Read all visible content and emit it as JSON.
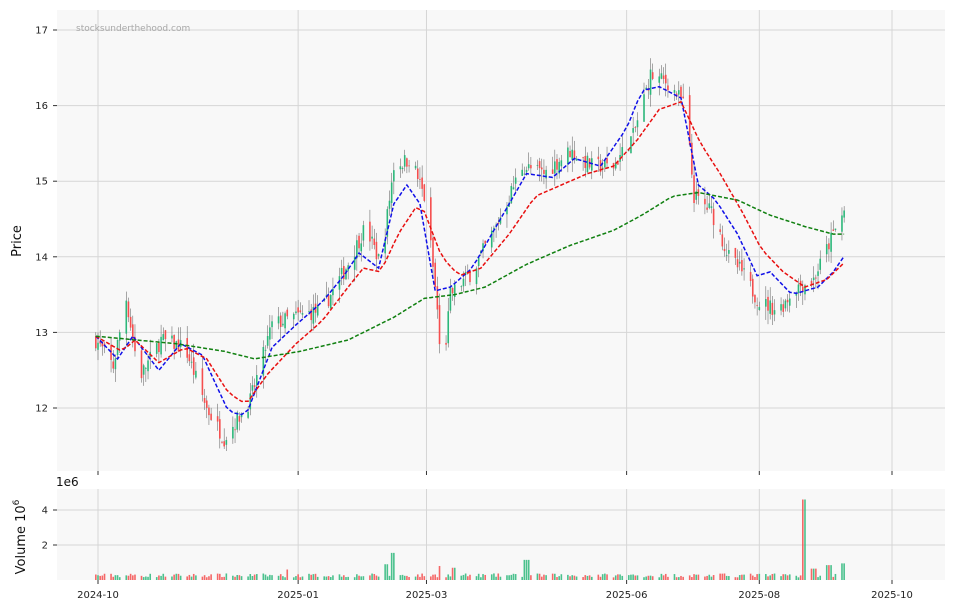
{
  "watermark": "stocksunderthehood.com",
  "colors": {
    "up": "#2cb77a",
    "down": "#f54e4e",
    "ma_fast": "#1010e8",
    "ma_mid": "#e81010",
    "ma_slow": "#108010",
    "panel_bg": "#f8f8f8",
    "grid": "#d6d6d6"
  },
  "chart_data": [
    {
      "type": "candlestick",
      "ylabel": "Price",
      "ylim": [
        11.15,
        17.25
      ],
      "yticks": [
        "12",
        "13",
        "14",
        "15",
        "16",
        "17"
      ],
      "xticks": [
        "2024-10",
        "2025-01",
        "2025-03",
        "2025-06",
        "2025-08",
        "2025-10"
      ],
      "grid": true,
      "close_keypoints": [
        [
          "2024-09-30",
          12.9
        ],
        [
          "2024-10-08",
          12.55
        ],
        [
          "2024-10-14",
          13.45
        ],
        [
          "2024-10-20",
          12.4
        ],
        [
          "2024-10-30",
          12.9
        ],
        [
          "2024-11-10",
          12.8
        ],
        [
          "2024-11-20",
          12.0
        ],
        [
          "2024-11-28",
          11.6
        ],
        [
          "2024-12-10",
          12.1
        ],
        [
          "2024-12-20",
          13.1
        ],
        [
          "2024-12-30",
          13.2
        ],
        [
          "2025-01-12",
          13.3
        ],
        [
          "2025-01-22",
          13.8
        ],
        [
          "2025-02-01",
          14.4
        ],
        [
          "2025-02-08",
          13.9
        ],
        [
          "2025-02-14",
          15.2
        ],
        [
          "2025-02-22",
          15.3
        ],
        [
          "2025-03-01",
          14.7
        ],
        [
          "2025-03-06",
          13.3
        ],
        [
          "2025-03-08",
          12.3
        ],
        [
          "2025-03-12",
          13.5
        ],
        [
          "2025-03-22",
          13.8
        ],
        [
          "2025-04-02",
          14.4
        ],
        [
          "2025-04-14",
          15.2
        ],
        [
          "2025-04-24",
          15.1
        ],
        [
          "2025-05-06",
          15.4
        ],
        [
          "2025-05-16",
          15.2
        ],
        [
          "2025-05-26",
          15.2
        ],
        [
          "2025-06-04",
          15.6
        ],
        [
          "2025-06-12",
          16.4
        ],
        [
          "2025-06-20",
          16.3
        ],
        [
          "2025-06-28",
          16.0
        ],
        [
          "2025-07-02",
          14.8
        ],
        [
          "2025-07-10",
          14.6
        ],
        [
          "2025-07-18",
          14.0
        ],
        [
          "2025-07-24",
          13.8
        ],
        [
          "2025-08-01",
          13.4
        ],
        [
          "2025-08-10",
          13.3
        ],
        [
          "2025-08-18",
          13.6
        ],
        [
          "2025-08-26",
          13.7
        ],
        [
          "2025-09-04",
          14.3
        ],
        [
          "2025-09-09",
          14.6
        ]
      ],
      "series": [
        {
          "name": "",
          "color_key": "ma_fast",
          "keypoints": [
            [
              "2024-09-30",
              12.95
            ],
            [
              "2024-10-10",
              12.65
            ],
            [
              "2024-10-17",
              12.95
            ],
            [
              "2024-10-29",
              12.5
            ],
            [
              "2024-11-08",
              12.85
            ],
            [
              "2024-11-18",
              12.7
            ],
            [
              "2024-11-30",
              11.95
            ],
            [
              "2024-12-08",
              11.9
            ],
            [
              "2024-12-20",
              12.8
            ],
            [
              "2024-12-31",
              13.1
            ],
            [
              "2025-01-12",
              13.4
            ],
            [
              "2025-01-22",
              13.75
            ],
            [
              "2025-01-29",
              14.05
            ],
            [
              "2025-02-07",
              13.85
            ],
            [
              "2025-02-14",
              14.7
            ],
            [
              "2025-02-20",
              14.95
            ],
            [
              "2025-02-26",
              14.7
            ],
            [
              "2025-03-05",
              13.55
            ],
            [
              "2025-03-12",
              13.6
            ],
            [
              "2025-03-22",
              13.85
            ],
            [
              "2025-04-04",
              14.5
            ],
            [
              "2025-04-16",
              15.1
            ],
            [
              "2025-04-28",
              15.05
            ],
            [
              "2025-05-08",
              15.3
            ],
            [
              "2025-05-20",
              15.2
            ],
            [
              "2025-06-01",
              15.7
            ],
            [
              "2025-06-08",
              16.2
            ],
            [
              "2025-06-16",
              16.25
            ],
            [
              "2025-06-26",
              16.1
            ],
            [
              "2025-07-04",
              14.95
            ],
            [
              "2025-07-12",
              14.75
            ],
            [
              "2025-07-22",
              14.3
            ],
            [
              "2025-07-31",
              13.75
            ],
            [
              "2025-08-06",
              13.8
            ],
            [
              "2025-08-16",
              13.5
            ],
            [
              "2025-08-28",
              13.6
            ],
            [
              "2025-09-04",
              13.8
            ],
            [
              "2025-09-10",
              14.05
            ]
          ]
        },
        {
          "name": "",
          "color_key": "ma_mid",
          "keypoints": [
            [
              "2024-09-30",
              12.95
            ],
            [
              "2024-10-12",
              12.75
            ],
            [
              "2024-10-18",
              12.9
            ],
            [
              "2024-10-29",
              12.6
            ],
            [
              "2024-11-10",
              12.8
            ],
            [
              "2024-11-20",
              12.65
            ],
            [
              "2024-11-30",
              12.2
            ],
            [
              "2024-12-08",
              12.05
            ],
            [
              "2024-12-18",
              12.45
            ],
            [
              "2024-12-31",
              12.85
            ],
            [
              "2025-01-12",
              13.15
            ],
            [
              "2025-01-24",
              13.6
            ],
            [
              "2025-01-31",
              13.85
            ],
            [
              "2025-02-08",
              13.8
            ],
            [
              "2025-02-16",
              14.3
            ],
            [
              "2025-02-24",
              14.65
            ],
            [
              "2025-02-28",
              14.6
            ],
            [
              "2025-03-08",
              14.0
            ],
            [
              "2025-03-16",
              13.75
            ],
            [
              "2025-03-26",
              13.85
            ],
            [
              "2025-04-08",
              14.3
            ],
            [
              "2025-04-20",
              14.8
            ],
            [
              "2025-05-02",
              14.95
            ],
            [
              "2025-05-14",
              15.1
            ],
            [
              "2025-05-26",
              15.2
            ],
            [
              "2025-06-06",
              15.55
            ],
            [
              "2025-06-16",
              15.95
            ],
            [
              "2025-06-26",
              16.05
            ],
            [
              "2025-07-05",
              15.5
            ],
            [
              "2025-07-14",
              15.1
            ],
            [
              "2025-07-24",
              14.6
            ],
            [
              "2025-08-02",
              14.1
            ],
            [
              "2025-08-12",
              13.8
            ],
            [
              "2025-08-22",
              13.6
            ],
            [
              "2025-09-01",
              13.7
            ],
            [
              "2025-09-10",
              13.95
            ]
          ]
        },
        {
          "name": "",
          "color_key": "ma_slow",
          "keypoints": [
            [
              "2024-09-30",
              12.95
            ],
            [
              "2024-11-06",
              12.85
            ],
            [
              "2024-11-28",
              12.75
            ],
            [
              "2024-12-12",
              12.65
            ],
            [
              "2025-01-02",
              12.75
            ],
            [
              "2025-01-24",
              12.9
            ],
            [
              "2025-02-14",
              13.2
            ],
            [
              "2025-02-28",
              13.45
            ],
            [
              "2025-03-14",
              13.5
            ],
            [
              "2025-03-28",
              13.6
            ],
            [
              "2025-04-16",
              13.9
            ],
            [
              "2025-05-06",
              14.15
            ],
            [
              "2025-05-26",
              14.35
            ],
            [
              "2025-06-08",
              14.55
            ],
            [
              "2025-06-22",
              14.8
            ],
            [
              "2025-07-04",
              14.85
            ],
            [
              "2025-07-22",
              14.75
            ],
            [
              "2025-08-06",
              14.55
            ],
            [
              "2025-08-22",
              14.4
            ],
            [
              "2025-09-04",
              14.3
            ],
            [
              "2025-09-10",
              14.3
            ]
          ]
        }
      ]
    },
    {
      "type": "bar",
      "ylabel": "Volume  10",
      "ylabel_exponent": "6",
      "offset_text": "1e6",
      "ylim": [
        0,
        5
      ],
      "yticks": [
        "2",
        "4"
      ],
      "xticks": [
        "2024-10",
        "2025-01",
        "2025-03",
        "2025-06",
        "2025-08",
        "2025-10"
      ],
      "baseline_millions": 0.25,
      "spikes_millions": [
        [
          "2024-12-28",
          0.6
        ],
        [
          "2025-02-10",
          0.9
        ],
        [
          "2025-02-14",
          1.55
        ],
        [
          "2025-03-08",
          0.8
        ],
        [
          "2025-03-14",
          0.7
        ],
        [
          "2025-04-16",
          1.15
        ],
        [
          "2025-08-22",
          4.6
        ],
        [
          "2025-08-26",
          0.65
        ],
        [
          "2025-09-02",
          0.85
        ],
        [
          "2025-09-08",
          0.95
        ]
      ]
    }
  ]
}
